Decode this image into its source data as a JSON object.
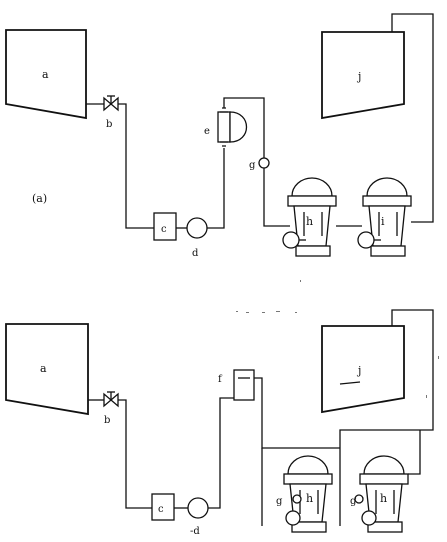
{
  "diagram_a": {
    "part_label": "(a)",
    "labels": {
      "a": "a",
      "b": "b",
      "c": "c",
      "d": "d",
      "e": "e",
      "g": "g",
      "h": "h",
      "i": "i",
      "j": "j"
    }
  },
  "diagram_b": {
    "labels": {
      "a": "a",
      "b": "b",
      "c": "c",
      "d": "-d",
      "f": "f",
      "g1": "g",
      "h1": "h",
      "g2": "g",
      "h2": "h",
      "j": "j"
    }
  }
}
